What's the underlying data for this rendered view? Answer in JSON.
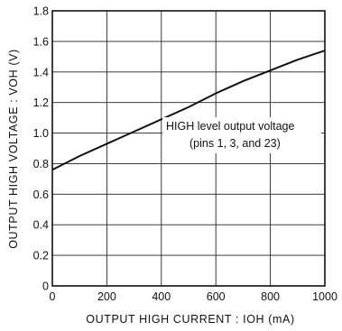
{
  "chart_data": {
    "type": "line",
    "title": "",
    "xlabel": "OUTPUT  HIGH  CURRENT : IOH  (mA)",
    "ylabel": "OUTPUT  HIGH  VOLTAGE : VOH  (V)",
    "xlim": [
      0,
      1000
    ],
    "ylim": [
      0,
      1.8
    ],
    "x_ticks": [
      "0",
      "200",
      "400",
      "600",
      "800",
      "1000"
    ],
    "y_ticks": [
      "0",
      "0.2",
      "0.4",
      "0.6",
      "0.8",
      "1.0",
      "1.2",
      "1.4",
      "1.6",
      "1.8"
    ],
    "grid": true,
    "series": [
      {
        "name": "",
        "x": [
          0,
          100,
          200,
          300,
          400,
          500,
          600,
          700,
          800,
          900,
          1000
        ],
        "y": [
          0.76,
          0.85,
          0.93,
          1.01,
          1.09,
          1.17,
          1.26,
          1.34,
          1.41,
          1.48,
          1.54
        ]
      }
    ],
    "annotations": [
      "HIGH level output voltage",
      "(pins 1, 3, and 23)"
    ]
  }
}
